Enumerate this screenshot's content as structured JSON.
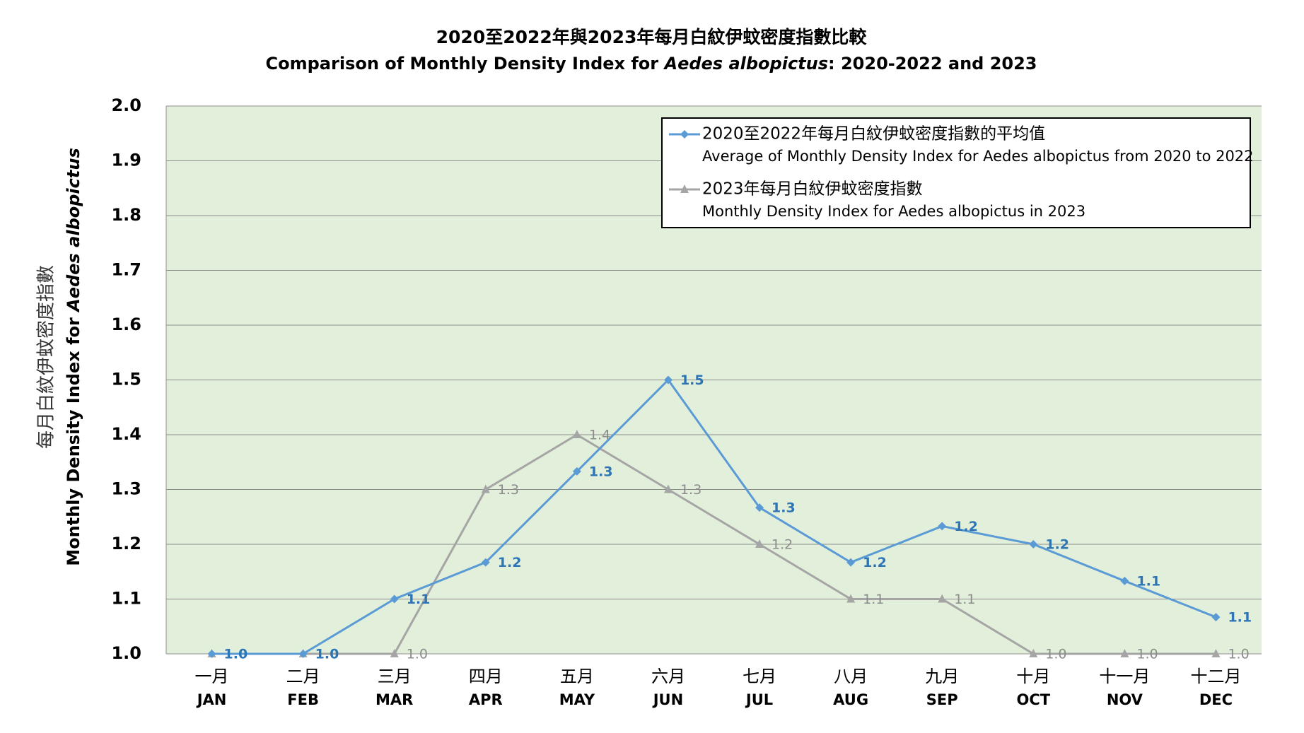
{
  "chart_data": {
    "type": "line",
    "title": {
      "zh": "2020至2022年與2023年每月白紋伊蚊密度指數比較",
      "en": [
        "Comparison of Monthly Density Index for ",
        "Aedes albopictus",
        ":  2020-2022 and 2023"
      ]
    },
    "ylabel": {
      "zh": "每月白紋伊蚊密度指數",
      "en": [
        "Monthly Density Index for ",
        "Aedes albopictus"
      ]
    },
    "categories": [
      "JAN",
      "FEB",
      "MAR",
      "APR",
      "MAY",
      "JUN",
      "JUL",
      "AUG",
      "SEP",
      "OCT",
      "NOV",
      "DEC"
    ],
    "categories_zh": [
      "一月",
      "二月",
      "三月",
      "四月",
      "五月",
      "六月",
      "七月",
      "八月",
      "九月",
      "十月",
      "十一月",
      "十二月"
    ],
    "series": [
      {
        "name": [
          "2020至2022年每月白紋伊蚊密度指數的平均值",
          "Average of Monthly Density Index  for Aedes albopictus from 2020 to 2022"
        ],
        "color": "#5b9bd5",
        "marker": "diamond",
        "values": [
          1,
          1,
          1.1,
          1.167,
          1.333,
          1.5,
          1.267,
          1.167,
          1.233,
          1.2,
          1.133,
          1.067
        ],
        "value_labels": [
          "1.0",
          "1.0",
          "1.1",
          "1.2",
          "1.3",
          "1.5",
          "1.3",
          "1.2",
          "1.2",
          "1.2",
          "1.1",
          "1.1"
        ]
      },
      {
        "name": [
          "2023年每月白紋伊蚊密度指數",
          "Monthly Density Index for Aedes albopictus in 2023"
        ],
        "color": "#a5a5a5",
        "marker": "triangle",
        "values": [
          1,
          1,
          1,
          1.3,
          1.4,
          1.3,
          1.2,
          1.1,
          1.1,
          1,
          1,
          1
        ],
        "value_labels": [
          null,
          null,
          "1.0",
          "1.3",
          "1.4",
          "1.3",
          "1.2",
          "1.1",
          "1.1",
          "1.0",
          "1.0",
          "1.0"
        ]
      }
    ],
    "ylim": [
      1,
      2
    ],
    "yticks": [
      {
        "value": 1,
        "label": "1.0"
      },
      1.1,
      1.2,
      1.3,
      1.4,
      1.5,
      1.6,
      1.7,
      1.8,
      1.9,
      {
        "value": 2,
        "label": "2.0"
      }
    ],
    "grid": true,
    "legend": "top-right"
  }
}
